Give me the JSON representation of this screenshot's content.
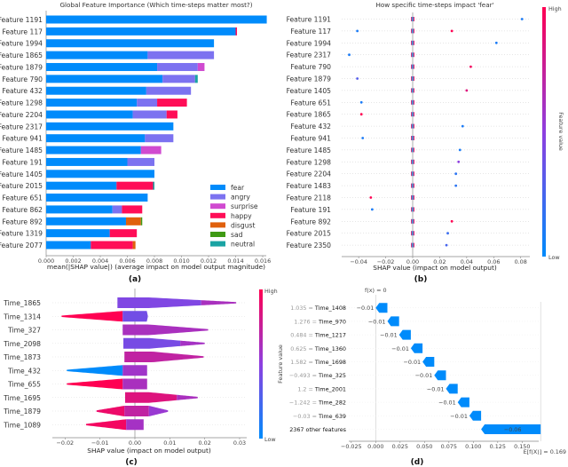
{
  "chart_data": [
    {
      "type": "bar",
      "stacked": true,
      "orientation": "horizontal",
      "panel_label": "(a)",
      "title": "Global Feature Importance (Which time-steps matter most?)",
      "xlabel": "mean(|SHAP value|) (average impact on model output magnitude)",
      "xlim": [
        0,
        0.0163
      ],
      "xtick_labels": [
        "0.000",
        "0.002",
        "0.004",
        "0.006",
        "0.008",
        "0.010",
        "0.012",
        "0.014",
        "0.016"
      ],
      "legend_position": "bottom-right",
      "categories": [
        "Feature 1191",
        "Feature 117",
        "Feature 1994",
        "Feature 1865",
        "Feature 1879",
        "Feature 790",
        "Feature 432",
        "Feature 1298",
        "Feature 2204",
        "Feature 2317",
        "Feature 941",
        "Feature 1485",
        "Feature 191",
        "Feature 1405",
        "Feature 2015",
        "Feature 651",
        "Feature 862",
        "Feature 892",
        "Feature 1319",
        "Feature 2077"
      ],
      "series": [
        {
          "name": "fear",
          "color": "#008bfb",
          "values": [
            0.0163,
            0.014,
            0.0124,
            0.0075,
            0.0082,
            0.0086,
            0.0074,
            0.0067,
            0.0064,
            0.0094,
            0.0073,
            0.007,
            0.006,
            0.008,
            0.0052,
            0.0075,
            0.0049,
            0.0059,
            0.0047,
            0.0033
          ]
        },
        {
          "name": "angry",
          "color": "#7c72f0",
          "values": [
            0,
            0,
            0,
            0.0049,
            0.003,
            0.0024,
            0.0033,
            0.0015,
            0.0025,
            0,
            0.0021,
            0,
            0.002,
            0,
            0,
            0,
            0.0007,
            0,
            0,
            0
          ]
        },
        {
          "name": "surprise",
          "color": "#d04ad0",
          "values": [
            0,
            0,
            0,
            0,
            0.0005,
            0,
            0,
            0,
            0,
            0,
            0,
            0.0015,
            0,
            0,
            0,
            0,
            0,
            0,
            0,
            0
          ]
        },
        {
          "name": "happy",
          "color": "#ff0d57",
          "values": [
            0,
            0.0001,
            0,
            0,
            0,
            0,
            0,
            0.0022,
            0.0008,
            0,
            0,
            0,
            0,
            0,
            0.0027,
            0,
            0.0015,
            0,
            0.002,
            0.0031
          ]
        },
        {
          "name": "disgust",
          "color": "#e0600c",
          "values": [
            0,
            0,
            0,
            0,
            0,
            0,
            0,
            0,
            0,
            0,
            0,
            0,
            0,
            0,
            0,
            0,
            0,
            0.0011,
            0,
            0.0002
          ]
        },
        {
          "name": "sad",
          "color": "#3f9a14",
          "values": [
            0,
            0,
            0,
            0,
            0,
            0,
            0,
            0,
            0,
            0,
            0,
            0,
            0,
            0,
            0,
            0,
            0,
            0.0001,
            0,
            0
          ]
        },
        {
          "name": "neutral",
          "color": "#1aa3a3",
          "values": [
            0,
            0,
            0,
            0,
            0,
            0.0002,
            0,
            0,
            0,
            0,
            0,
            0,
            0,
            0,
            0.0001,
            0,
            0,
            0,
            0,
            0
          ]
        }
      ]
    },
    {
      "type": "scatter",
      "panel_label": "(b)",
      "title": "How specific time-steps impact 'fear'",
      "xlabel": "SHAP value (impact on model output)",
      "xlim": [
        -0.053,
        0.087
      ],
      "xtick_labels": [
        "−0.04",
        "−0.02",
        "0.00",
        "0.02",
        "0.04",
        "0.06",
        "0.08"
      ],
      "categories": [
        "Feature 1191",
        "Feature 117",
        "Feature 1994",
        "Feature 2317",
        "Feature 790",
        "Feature 1879",
        "Feature 1405",
        "Feature 651",
        "Feature 1865",
        "Feature 432",
        "Feature 941",
        "Feature 1485",
        "Feature 1298",
        "Feature 2204",
        "Feature 1483",
        "Feature 2118",
        "Feature 191",
        "Feature 892",
        "Feature 2015",
        "Feature 2350"
      ],
      "points": [
        {
          "feature": "Feature 1191",
          "shap": 0.081,
          "feature_value": 0.1
        },
        {
          "feature": "Feature 117",
          "shap": -0.041,
          "feature_value": 0.1
        },
        {
          "feature": "Feature 117",
          "shap": 0.029,
          "feature_value": 1.0
        },
        {
          "feature": "Feature 1994",
          "shap": 0.062,
          "feature_value": 0.1
        },
        {
          "feature": "Feature 2317",
          "shap": -0.047,
          "feature_value": 0.1
        },
        {
          "feature": "Feature 790",
          "shap": 0.043,
          "feature_value": 0.95
        },
        {
          "feature": "Feature 1879",
          "shap": -0.041,
          "feature_value": 0.3
        },
        {
          "feature": "Feature 1405",
          "shap": 0.04,
          "feature_value": 0.85
        },
        {
          "feature": "Feature 651",
          "shap": -0.038,
          "feature_value": 0.1
        },
        {
          "feature": "Feature 1865",
          "shap": -0.038,
          "feature_value": 1.0
        },
        {
          "feature": "Feature 432",
          "shap": 0.037,
          "feature_value": 0.1
        },
        {
          "feature": "Feature 941",
          "shap": -0.037,
          "feature_value": 0.1
        },
        {
          "feature": "Feature 1485",
          "shap": 0.035,
          "feature_value": 0.1
        },
        {
          "feature": "Feature 1298",
          "shap": 0.034,
          "feature_value": 0.5
        },
        {
          "feature": "Feature 2204",
          "shap": 0.032,
          "feature_value": 0.15
        },
        {
          "feature": "Feature 1483",
          "shap": 0.032,
          "feature_value": 0.15
        },
        {
          "feature": "Feature 2118",
          "shap": -0.031,
          "feature_value": 1.0
        },
        {
          "feature": "Feature 191",
          "shap": -0.03,
          "feature_value": 0.1
        },
        {
          "feature": "Feature 892",
          "shap": 0.029,
          "feature_value": 1.0
        },
        {
          "feature": "Feature 2015",
          "shap": 0.026,
          "feature_value": 0.2
        },
        {
          "feature": "Feature 2350",
          "shap": 0.025,
          "feature_value": 0.25
        }
      ],
      "colorbar": {
        "high": "High",
        "low": "Low",
        "label": "Feature value",
        "low_color": "#008bfb",
        "mid_color": "#8e3fe0",
        "high_color": "#ff0052"
      }
    },
    {
      "type": "violin",
      "panel_label": "(c)",
      "xlabel": "SHAP value (impact on model output)",
      "xlim": [
        -0.0235,
        0.0318
      ],
      "xtick_labels": [
        "−0.02",
        "−0.01",
        "0.00",
        "0.01",
        "0.02",
        "0.03"
      ],
      "categories": [
        "Time_1865",
        "Time_1314",
        "Time_327",
        "Time_2098",
        "Time_1873",
        "Time_432",
        "Time_655",
        "Time_1695",
        "Time_1879",
        "Time_1089"
      ],
      "violins": [
        {
          "min": -0.005,
          "body": [
            -0.005,
            0.004
          ],
          "max": 0.029,
          "segments": [
            [
              -0.005,
              0.019,
              0.45
            ],
            [
              0.019,
              0.029,
              0.62
            ]
          ]
        },
        {
          "min": -0.021,
          "body": [
            -0.0035,
            0.0037
          ],
          "max": 0.0037,
          "segments": [
            [
              -0.021,
              -0.0035,
              1
            ],
            [
              -0.0035,
              0.0037,
              0.4
            ]
          ]
        },
        {
          "min": -0.0035,
          "body": [
            -0.0035,
            0.004
          ],
          "max": 0.021,
          "segments": [
            [
              -0.0035,
              0.021,
              0.62
            ]
          ]
        },
        {
          "min": -0.0033,
          "body": [
            -0.0033,
            0.004
          ],
          "max": 0.02,
          "segments": [
            [
              -0.0033,
              0.013,
              0.42
            ],
            [
              0.013,
              0.02,
              0.6
            ]
          ]
        },
        {
          "min": -0.003,
          "body": [
            -0.003,
            0.005
          ],
          "max": 0.0197,
          "segments": [
            [
              -0.003,
              0.0197,
              0.72
            ]
          ]
        },
        {
          "min": -0.0195,
          "body": [
            -0.0035,
            0.0035
          ],
          "max": 0.0035,
          "segments": [
            [
              -0.0195,
              -0.0035,
              0
            ],
            [
              -0.0035,
              0.0035,
              0.58
            ]
          ]
        },
        {
          "min": -0.0195,
          "body": [
            -0.0035,
            0.0035
          ],
          "max": 0.0035,
          "segments": [
            [
              -0.0195,
              -0.0035,
              1
            ],
            [
              -0.0035,
              0.0035,
              0.62
            ]
          ]
        },
        {
          "min": -0.0028,
          "body": [
            -0.0028,
            0.004
          ],
          "max": 0.018,
          "segments": [
            [
              -0.0028,
              0.012,
              0.85
            ],
            [
              0.012,
              0.018,
              0.62
            ]
          ]
        },
        {
          "min": -0.011,
          "body": [
            -0.003,
            0.004
          ],
          "max": 0.0095,
          "segments": [
            [
              -0.011,
              -0.003,
              0.92
            ],
            [
              -0.003,
              0.004,
              0.72
            ],
            [
              0.004,
              0.0095,
              0.55
            ]
          ]
        },
        {
          "min": -0.014,
          "body": [
            -0.0025,
            0.0025
          ],
          "max": 0.0025,
          "segments": [
            [
              -0.014,
              -0.0025,
              0.95
            ],
            [
              -0.0025,
              0.0025,
              0.6
            ]
          ]
        }
      ],
      "colorbar": {
        "high": "High",
        "low": "Low",
        "label": "Feature value"
      }
    },
    {
      "type": "waterfall",
      "panel_label": "(d)",
      "fx_label": "f(x) = 0",
      "base_label": "E[f(X)] = 0.169",
      "base_value": 0.169,
      "xlim": [
        -0.03,
        0.172
      ],
      "xtick_labels": [
        "−0.025",
        "0.000",
        "0.025",
        "0.050",
        "0.075",
        "0.100",
        "0.125",
        "0.150"
      ],
      "bar_color": "#008bfb",
      "rows": [
        {
          "feature_value": "1.035 =",
          "feature": "Time_1408",
          "value": -0.012,
          "label": "−0.01"
        },
        {
          "feature_value": "1.276 =",
          "feature": "Time_970",
          "value": -0.012,
          "label": "−0.01"
        },
        {
          "feature_value": "0.484 =",
          "feature": "Time_1217",
          "value": -0.012,
          "label": "−0.01"
        },
        {
          "feature_value": "0.625 =",
          "feature": "Time_1360",
          "value": -0.012,
          "label": "−0.01"
        },
        {
          "feature_value": "1.582 =",
          "feature": "Time_1698",
          "value": -0.012,
          "label": "−0.01"
        },
        {
          "feature_value": "−0.493 =",
          "feature": "Time_325",
          "value": -0.012,
          "label": "−0.01"
        },
        {
          "feature_value": "1.2 =",
          "feature": "Time_2001",
          "value": -0.012,
          "label": "−0.01"
        },
        {
          "feature_value": "−1.242 =",
          "feature": "Time_282",
          "value": -0.012,
          "label": "−0.01"
        },
        {
          "feature_value": "−0.03 =",
          "feature": "Time_639",
          "value": -0.012,
          "label": "−0.01"
        },
        {
          "feature_value": "",
          "feature": "2367 other features",
          "value": -0.061,
          "label": "−0.06"
        }
      ]
    }
  ]
}
